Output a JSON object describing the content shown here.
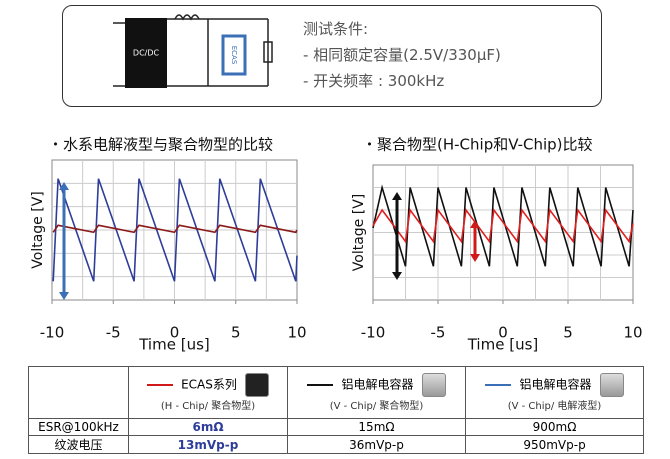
{
  "conditions": {
    "title": "测试条件:",
    "items": [
      "- 相同额定容量(2.5V/330μF)",
      "- 开关频率 : 300kHz"
    ]
  },
  "diagram": {
    "converter": "DC/DC",
    "cap": "ECAS"
  },
  "chart_data": [
    {
      "type": "line",
      "title": "・水系电解液型与聚合物型的比较",
      "x_label": "Time [us]",
      "y_label": "Voltage [V]",
      "xlim": [
        -10,
        10
      ],
      "xticks": [
        -10,
        -5,
        0,
        5,
        10
      ],
      "ylim": [
        -3,
        3
      ],
      "series": [
        {
          "color": "#2e3d9a",
          "x": [
            -9.9,
            -9.5,
            -6.6,
            -6.2,
            -3.3,
            -2.9,
            0,
            0.4,
            3.3,
            3.7,
            6.6,
            7,
            9.9,
            10
          ],
          "values": [
            -2.2,
            2.2,
            -2.2,
            2.2,
            -2.2,
            2.2,
            -2.2,
            2.2,
            -2.2,
            2.2,
            -2.2,
            2.2,
            -2.2,
            -1.1
          ]
        },
        {
          "color": "#8b1a1a",
          "x": [
            -9.9,
            -9.5,
            -6.6,
            -6.2,
            -3.3,
            -2.9,
            0,
            0.4,
            3.3,
            3.7,
            6.6,
            7,
            9.9,
            10
          ],
          "values": [
            -0.1,
            0.2,
            -0.1,
            0.2,
            -0.1,
            0.2,
            -0.1,
            0.2,
            -0.1,
            0.2,
            -0.1,
            0.2,
            -0.1,
            0
          ]
        }
      ]
    },
    {
      "type": "line",
      "title": "・聚合物型(H-Chip和V-Chip)比较",
      "x_label": "Time [us]",
      "y_label": "Voltage [V]",
      "xlim": [
        -10,
        10
      ],
      "xticks": [
        -10,
        -5,
        0,
        5,
        10
      ],
      "ylim": [
        -3,
        3
      ],
      "series": [
        {
          "color": "#111111",
          "x": [
            -10,
            -9.3,
            -7.5,
            -7.15,
            -5.35,
            -5.0,
            -3.2,
            -2.85,
            -1.05,
            -0.7,
            1.1,
            1.45,
            3.25,
            3.6,
            5.4,
            5.75,
            7.55,
            7.9,
            9.7,
            10
          ],
          "values": [
            0.2,
            2.0,
            -1.5,
            2.0,
            -1.5,
            2.0,
            -1.5,
            2.0,
            -1.5,
            2.0,
            -1.5,
            2.0,
            -1.5,
            2.0,
            -1.5,
            2.0,
            -1.5,
            2.0,
            -1.5,
            1.0
          ]
        },
        {
          "color": "#e02020",
          "x": [
            -10,
            -9.3,
            -7.5,
            -7.15,
            -5.35,
            -5.0,
            -3.2,
            -2.85,
            -1.05,
            -0.7,
            1.1,
            1.45,
            3.25,
            3.6,
            5.4,
            5.75,
            7.55,
            7.9,
            9.7,
            10
          ],
          "values": [
            0.3,
            1.0,
            -0.4,
            1.0,
            -0.4,
            1.0,
            -0.4,
            1.0,
            -0.4,
            1.0,
            -0.4,
            1.0,
            -0.4,
            1.0,
            -0.4,
            1.0,
            -0.4,
            1.0,
            -0.4,
            0.4
          ]
        }
      ]
    }
  ],
  "table": {
    "columns": [
      {
        "name": "ECAS系列",
        "sub": "(H - Chip/ 聚合物型)",
        "color": "#d0191b"
      },
      {
        "name": "铝电解电容器",
        "sub": "(V - Chip/ 聚合物型)",
        "color": "#111111"
      },
      {
        "name": "铝电解电容器",
        "sub": "(V - Chip/ 电解液型)",
        "color": "#3b6fb6"
      }
    ],
    "rows": [
      {
        "label": "ESR@100kHz",
        "cells": [
          "6mΩ",
          "15mΩ",
          "900mΩ"
        ]
      },
      {
        "label": "纹波电压",
        "cells": [
          "13mVp-p",
          "36mVp-p",
          "950mVp-p"
        ]
      }
    ]
  }
}
